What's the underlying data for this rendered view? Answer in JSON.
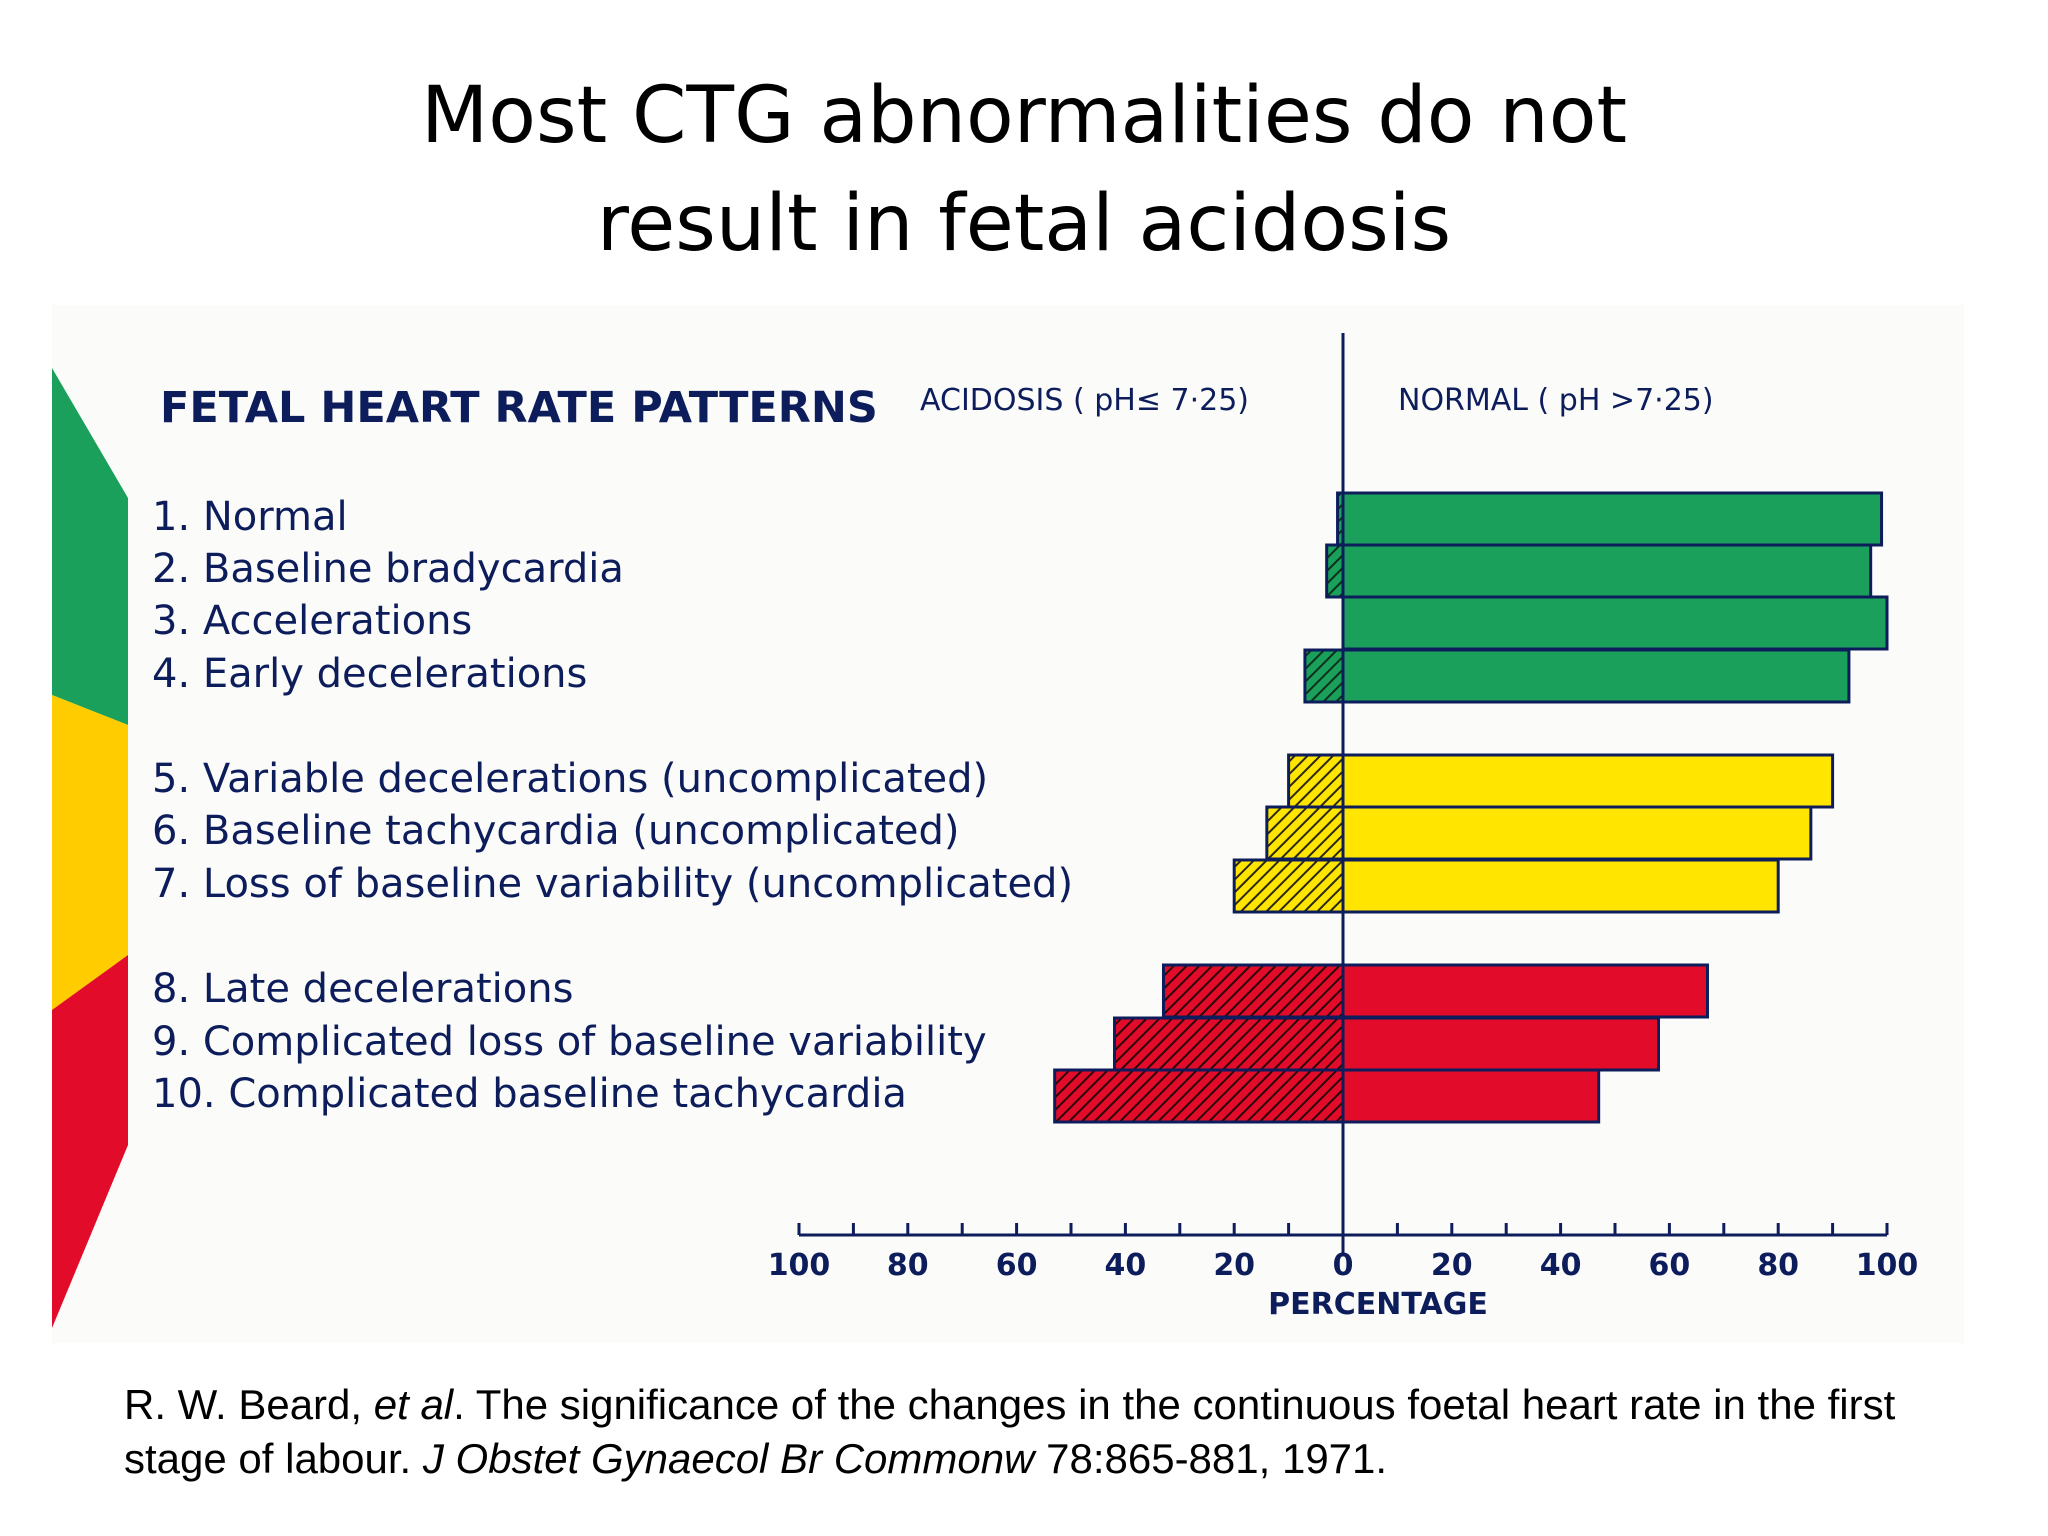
{
  "slide": {
    "title_line1": "Most CTG abnormalities do not",
    "title_line2": "result in fetal acidosis"
  },
  "chart_data": {
    "type": "bar",
    "orientation": "horizontal-diverging",
    "title": "FETAL HEART RATE PATTERNS",
    "left_header": "ACIDOSIS ( pH≤ 7·25)",
    "right_header": "NORMAL ( pH >7·25)",
    "xlabel": "PERCENTAGE",
    "x_ticks": [
      "100",
      "80",
      "60",
      "40",
      "20",
      "0",
      "20",
      "40",
      "60",
      "80",
      "100"
    ],
    "xlim": [
      -100,
      100
    ],
    "categories": [
      "1. Normal",
      "2. Baseline bradycardia",
      "3. Accelerations",
      "4. Early decelerations",
      "5. Variable decelerations (uncomplicated)",
      "6. Baseline tachycardia (uncomplicated)",
      "7. Loss of baseline variability (uncomplicated)",
      "8. Late decelerations",
      "9. Complicated loss of baseline variability",
      "10. Complicated baseline tachycardia"
    ],
    "groups": [
      0,
      0,
      0,
      0,
      1,
      1,
      1,
      2,
      2,
      2
    ],
    "series": [
      {
        "name": "ACIDOSIS ( pH≤ 7·25)",
        "values": [
          1,
          3,
          0,
          7,
          10,
          14,
          20,
          33,
          42,
          53
        ]
      },
      {
        "name": "NORMAL ( pH >7·25)",
        "values": [
          99,
          97,
          100,
          93,
          90,
          86,
          80,
          67,
          58,
          47
        ]
      }
    ],
    "group_colors": [
      "#1aa05a",
      "#ffe500",
      "#e30b2a"
    ],
    "grid": false
  },
  "citation": {
    "authors": "R. W. Beard, ",
    "etal": "et al",
    "text1": ". The significance of the changes in the continuous foetal heart rate in the first stage of labour. ",
    "journal": "J Obstet Gynaecol Br Commonw",
    "text2": " 78:865-881, 1971."
  }
}
